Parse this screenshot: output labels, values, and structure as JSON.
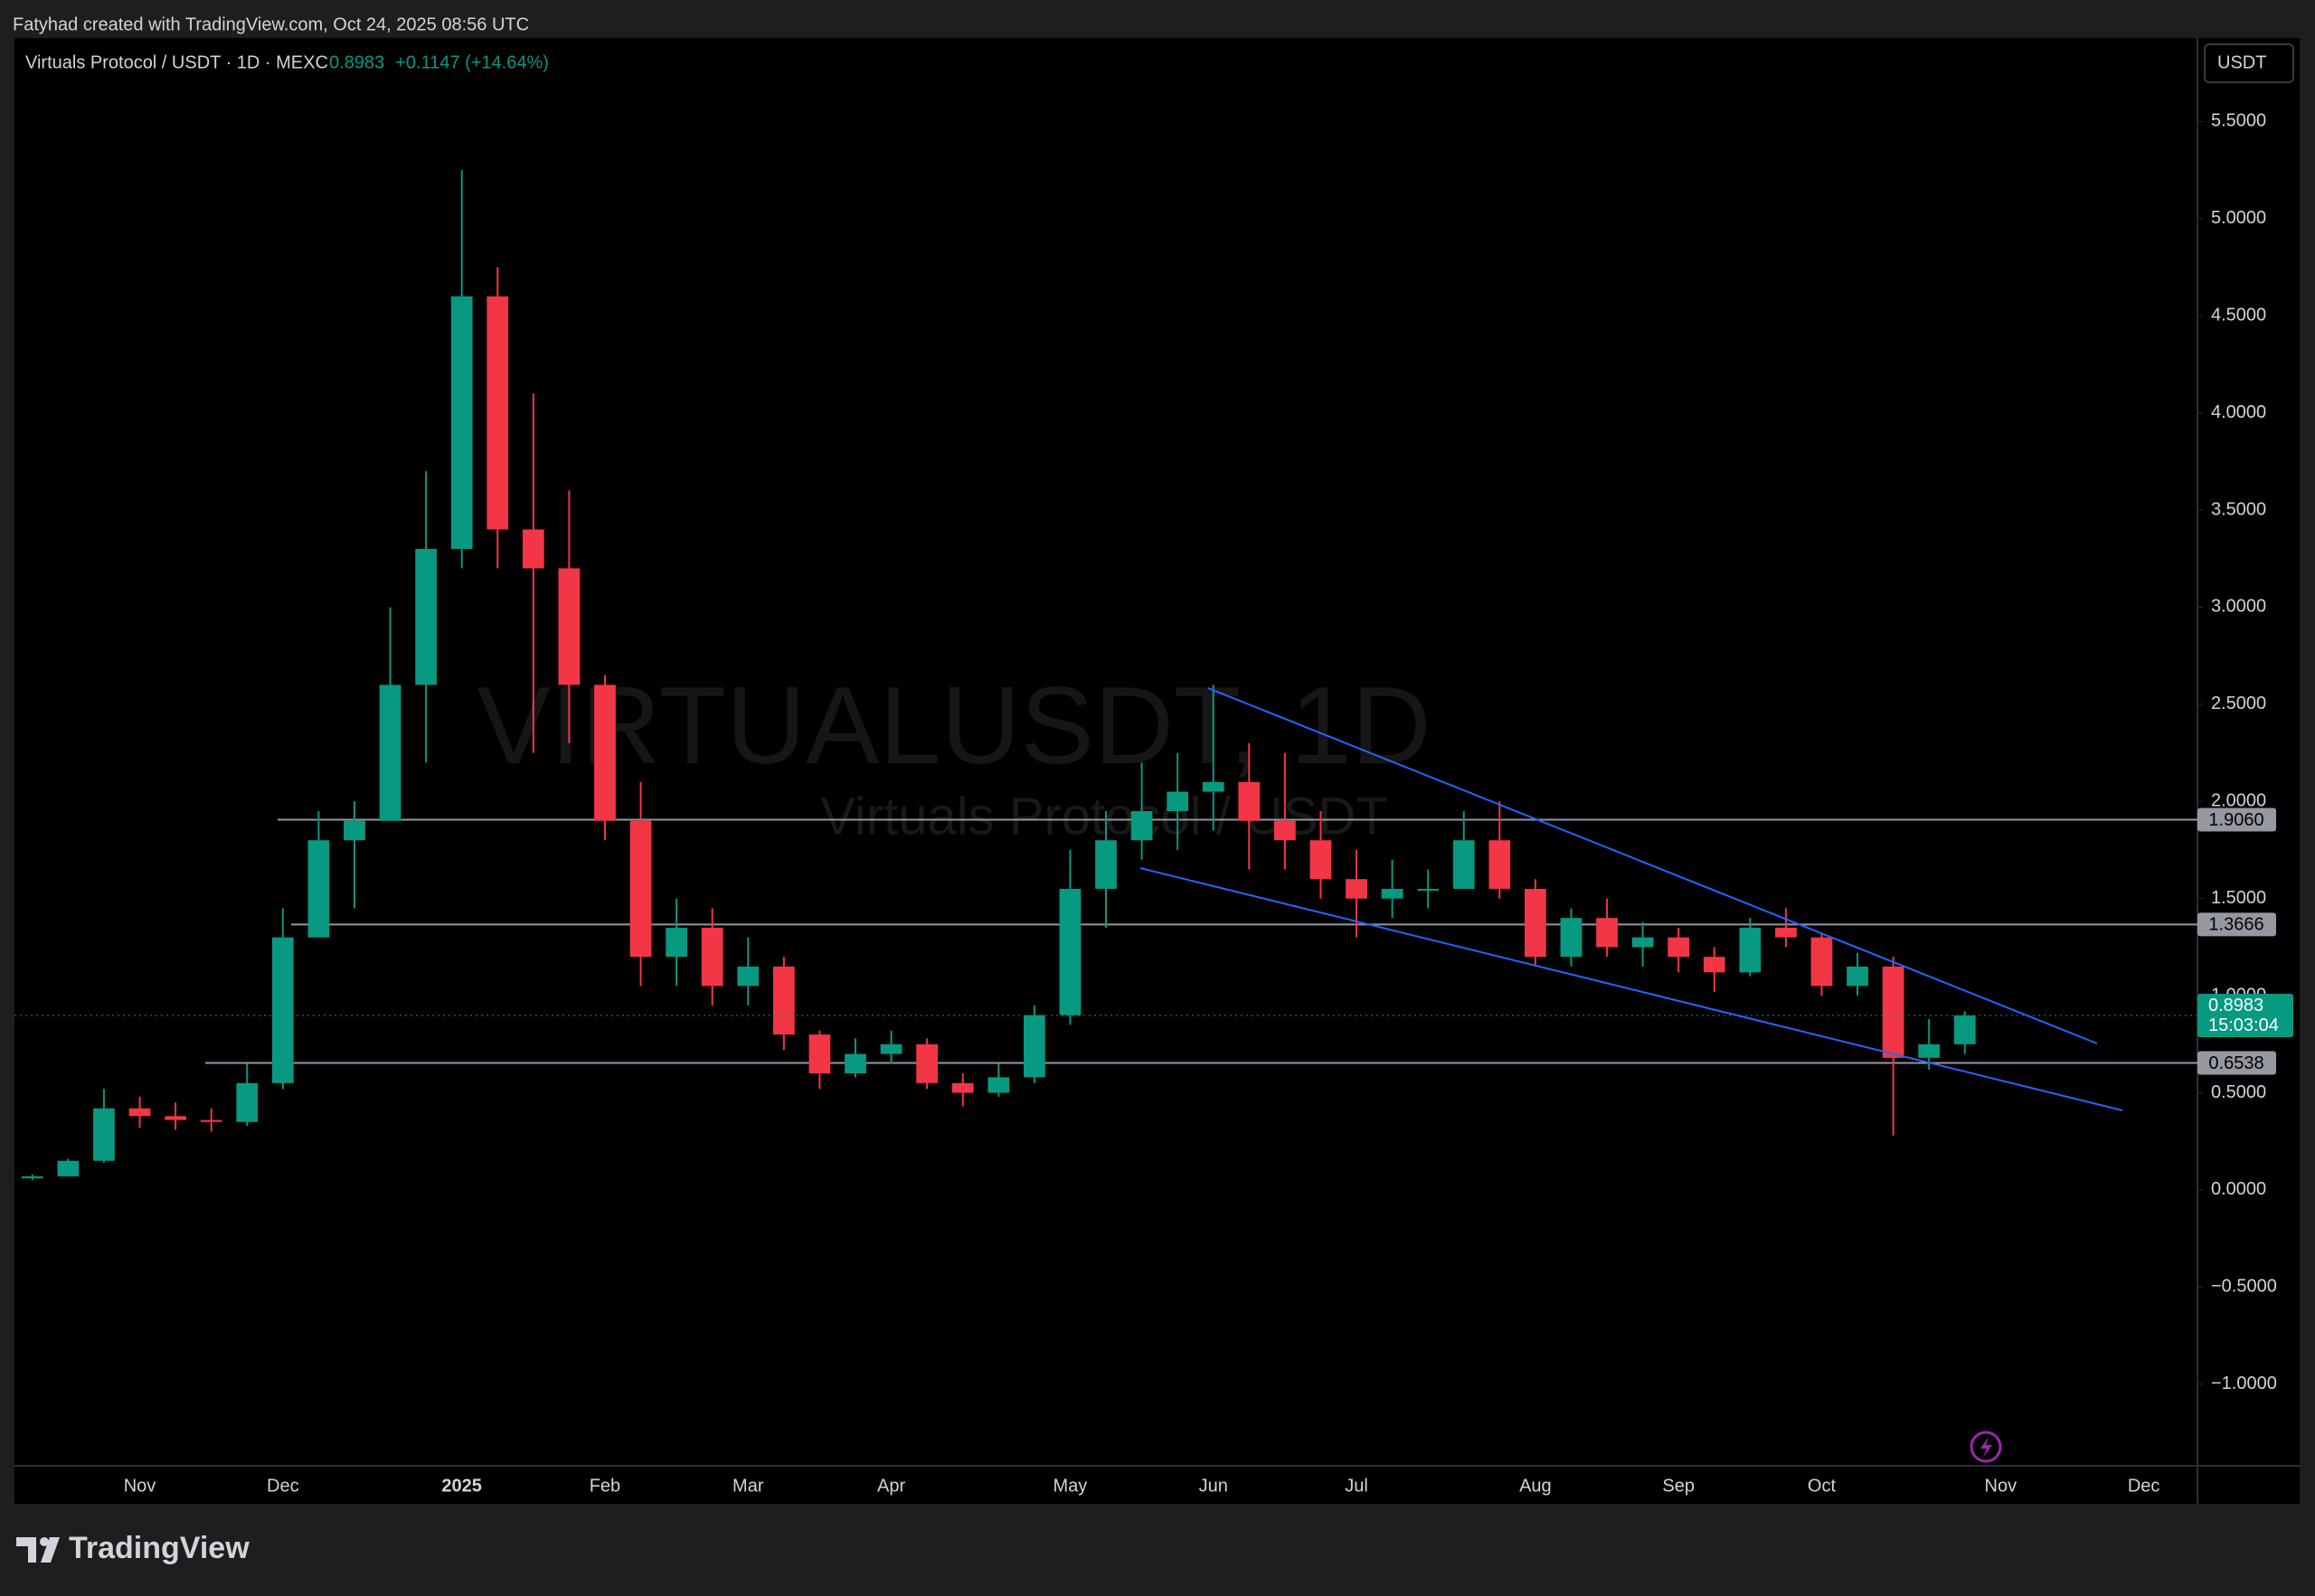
{
  "page": {
    "credit": "Fatyhad created with TradingView.com, Oct 24, 2025 08:56 UTC",
    "logo": "TradingView",
    "currency_button": "USDT"
  },
  "chart_data": {
    "type": "candlestick",
    "title": "Virtuals Protocol / USDT · 1D · MEXC",
    "last": 0.8983,
    "change": "+0.1147 (+14.64%)",
    "countdown": "15:03:04",
    "watermark": "VIRTUALUSDT, 1D",
    "watermark_subtitle": "Virtuals Protocol / USDT",
    "up_color": "#089981",
    "down_color": "#f23645",
    "categories": [
      null,
      null,
      null,
      "Nov",
      null,
      null,
      null,
      "Dec",
      null,
      null,
      null,
      null,
      "2025",
      null,
      null,
      null,
      "Feb",
      null,
      null,
      null,
      "Mar",
      null,
      null,
      null,
      "Apr",
      null,
      null,
      null,
      null,
      "May",
      null,
      null,
      null,
      "Jun",
      null,
      null,
      null,
      "Jul",
      null,
      null,
      null,
      null,
      "Aug",
      null,
      null,
      null,
      "Sep",
      null,
      null,
      null,
      "Oct",
      null,
      null,
      null,
      null,
      "Nov",
      null,
      null,
      null,
      "Dec",
      null
    ],
    "open": [
      0.06,
      0.07,
      0.15,
      0.42,
      0.38,
      0.36,
      0.35,
      0.55,
      1.3,
      1.8,
      1.9,
      2.6,
      3.3,
      4.6,
      3.4,
      3.2,
      2.6,
      1.9,
      1.2,
      1.35,
      1.05,
      1.15,
      0.8,
      0.6,
      0.7,
      0.75,
      0.55,
      0.5,
      0.58,
      0.9,
      1.55,
      1.8,
      1.95,
      2.05,
      2.1,
      1.9,
      1.8,
      1.6,
      1.5,
      1.55,
      1.55,
      1.8,
      1.55,
      1.2,
      1.4,
      1.25,
      1.3,
      1.2,
      1.12,
      1.35,
      1.3,
      1.05,
      1.15,
      0.68,
      0.75,
      null,
      null,
      null,
      null,
      null,
      null
    ],
    "high": [
      0.08,
      0.16,
      0.52,
      0.48,
      0.45,
      0.42,
      0.65,
      1.45,
      1.95,
      2.0,
      3.0,
      3.7,
      5.25,
      4.75,
      4.1,
      3.6,
      2.65,
      2.1,
      1.5,
      1.45,
      1.3,
      1.2,
      0.82,
      0.78,
      0.82,
      0.78,
      0.6,
      0.65,
      0.95,
      1.75,
      1.95,
      2.2,
      2.25,
      2.6,
      2.3,
      2.25,
      1.95,
      1.75,
      1.7,
      1.65,
      1.95,
      2.0,
      1.6,
      1.45,
      1.5,
      1.38,
      1.35,
      1.25,
      1.4,
      1.45,
      1.32,
      1.22,
      1.2,
      0.88,
      0.92,
      null,
      null,
      null,
      null,
      null,
      null
    ],
    "low": [
      0.05,
      0.07,
      0.14,
      0.32,
      0.31,
      0.3,
      0.33,
      0.52,
      1.3,
      1.45,
      1.9,
      2.2,
      3.2,
      3.2,
      2.25,
      2.3,
      1.8,
      1.05,
      1.05,
      0.95,
      0.95,
      0.72,
      0.52,
      0.58,
      0.65,
      0.52,
      0.43,
      0.48,
      0.55,
      0.85,
      1.35,
      1.7,
      1.75,
      1.85,
      1.65,
      1.65,
      1.5,
      1.3,
      1.4,
      1.45,
      1.55,
      1.5,
      1.15,
      1.15,
      1.2,
      1.15,
      1.12,
      1.02,
      1.1,
      1.25,
      1.0,
      1.0,
      0.28,
      0.62,
      0.7,
      null,
      null,
      null,
      null,
      null,
      null
    ],
    "close": [
      0.07,
      0.15,
      0.42,
      0.38,
      0.36,
      0.35,
      0.55,
      1.3,
      1.8,
      1.9,
      2.6,
      3.3,
      4.6,
      3.4,
      3.2,
      2.6,
      1.9,
      1.2,
      1.35,
      1.05,
      1.15,
      0.8,
      0.6,
      0.7,
      0.75,
      0.55,
      0.5,
      0.58,
      0.9,
      1.55,
      1.8,
      1.95,
      2.05,
      2.1,
      1.9,
      1.8,
      1.6,
      1.5,
      1.55,
      1.55,
      1.8,
      1.55,
      1.2,
      1.4,
      1.25,
      1.3,
      1.2,
      1.12,
      1.35,
      1.3,
      1.05,
      1.15,
      0.68,
      0.75,
      0.8983,
      null,
      null,
      null,
      null,
      null,
      null
    ],
    "ylim": [
      -1.42,
      5.93
    ],
    "yticks": [
      {
        "value": -1,
        "label": "−1.0000"
      },
      {
        "value": -0.5,
        "label": "−0.5000"
      },
      {
        "value": 0,
        "label": "0.0000"
      },
      {
        "value": 0.5,
        "label": "0.5000"
      },
      {
        "value": 1,
        "label": "1.0000"
      },
      {
        "value": 1.5,
        "label": "1.5000"
      },
      {
        "value": 2,
        "label": "2.0000"
      },
      {
        "value": 2.5,
        "label": "2.5000"
      },
      {
        "value": 3,
        "label": "3.0000"
      },
      {
        "value": 3.5,
        "label": "3.5000"
      },
      {
        "value": 4,
        "label": "4.0000"
      },
      {
        "value": 4.5,
        "label": "4.5000"
      },
      {
        "value": 5,
        "label": "5.0000"
      },
      {
        "value": 5.5,
        "label": "5.5000"
      }
    ],
    "hlines": [
      {
        "value": 1.906,
        "label": "1.9060"
      },
      {
        "value": 1.3666,
        "label": "1.3666"
      },
      {
        "value": 0.6538,
        "label": "0.6538"
      }
    ]
  }
}
